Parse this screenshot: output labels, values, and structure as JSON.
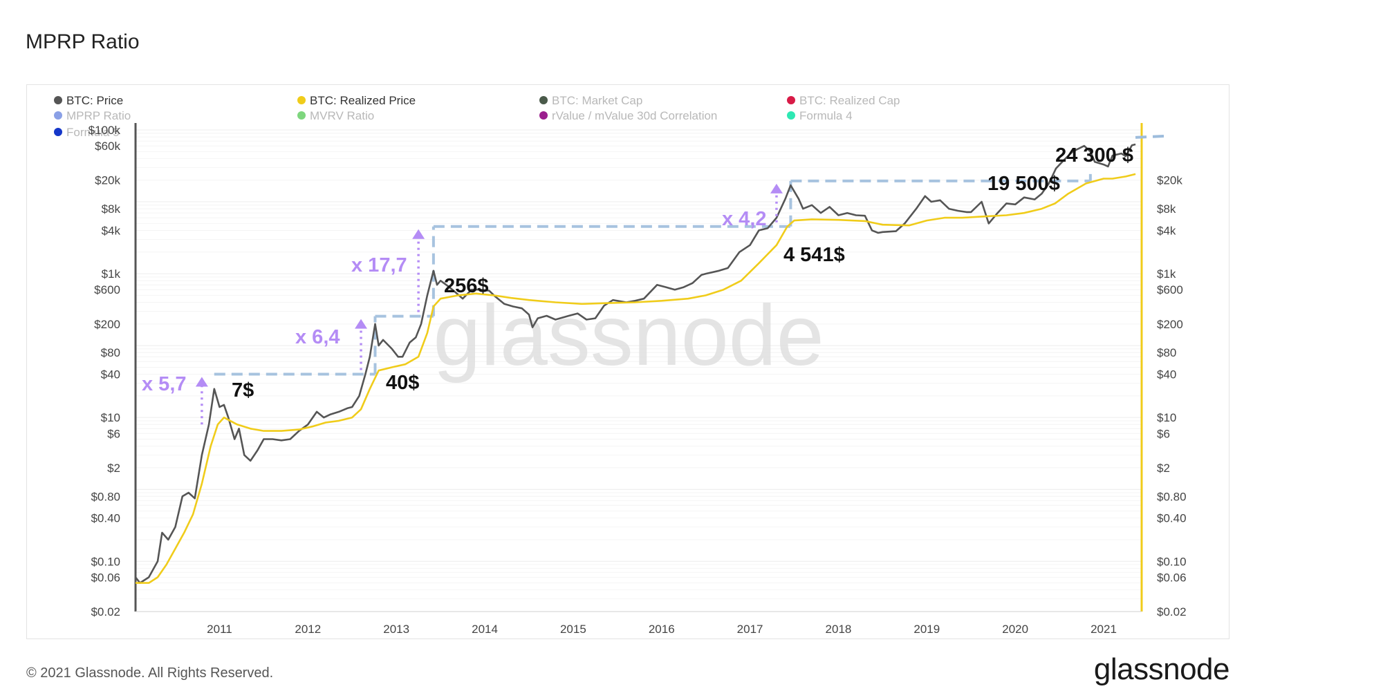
{
  "page": {
    "title": "MPRP Ratio",
    "copyright": "© 2021 Glassnode. All Rights Reserved.",
    "brand": "glassnode",
    "watermark": "glassnode"
  },
  "colors": {
    "price": "#555555",
    "realized": "#f0cc1a",
    "annotation_purple": "#b48cf5",
    "dash_blue": "#9dbcdc",
    "legend_market_cap": "#4a5a4a",
    "legend_realized_cap": "#d81b47",
    "legend_mprp": "#8aa0e6",
    "legend_mvrv": "#7ed67e",
    "legend_rvalue": "#9b1f8e",
    "legend_formula4": "#2ee8b3",
    "legend_formula5": "#1537c9"
  },
  "chart_data": {
    "type": "line",
    "y_scale": "log",
    "ylim": [
      0.02,
      100000
    ],
    "x_range": [
      "2010-07",
      "2021-11"
    ],
    "x_ticks": [
      "2011",
      "2012",
      "2013",
      "2014",
      "2015",
      "2016",
      "2017",
      "2018",
      "2019",
      "2020",
      "2021"
    ],
    "y_ticks_left": [
      "$100k",
      "$60k",
      "$20k",
      "$8k",
      "$4k",
      "$1k",
      "$600",
      "$200",
      "$80",
      "$40",
      "$10",
      "$6",
      "$2",
      "$0.80",
      "$0.40",
      "$0.10",
      "$0.06",
      "$0.02"
    ],
    "y_ticks_right": [
      "$20k",
      "$8k",
      "$4k",
      "$1k",
      "$600",
      "$200",
      "$80",
      "$40",
      "$10",
      "$6",
      "$2",
      "$0.80",
      "$0.40",
      "$0.10",
      "$0.06",
      "$0.02"
    ],
    "legend": [
      {
        "label": "BTC: Price",
        "color": "#555555",
        "active": true
      },
      {
        "label": "BTC: Realized Price",
        "color": "#f0cc1a",
        "active": true
      },
      {
        "label": "BTC: Market Cap",
        "color": "#4a5a4a",
        "active": false
      },
      {
        "label": "BTC: Realized Cap",
        "color": "#d81b47",
        "active": false
      },
      {
        "label": "MPRP Ratio",
        "color": "#8aa0e6",
        "active": false
      },
      {
        "label": "MVRV Ratio",
        "color": "#7ed67e",
        "active": false
      },
      {
        "label": "rValue / mValue 30d Correlation",
        "color": "#9b1f8e",
        "active": false
      },
      {
        "label": "Formula 4",
        "color": "#2ee8b3",
        "active": false
      },
      {
        "label": "Formula 5",
        "color": "#1537c9",
        "active": false
      }
    ],
    "series": [
      {
        "name": "BTC: Price",
        "points": [
          [
            2010.55,
            0.06
          ],
          [
            2010.6,
            0.05
          ],
          [
            2010.7,
            0.06
          ],
          [
            2010.8,
            0.1
          ],
          [
            2010.85,
            0.25
          ],
          [
            2010.92,
            0.2
          ],
          [
            2011.0,
            0.3
          ],
          [
            2011.08,
            0.8
          ],
          [
            2011.15,
            0.9
          ],
          [
            2011.22,
            0.75
          ],
          [
            2011.3,
            3
          ],
          [
            2011.38,
            8
          ],
          [
            2011.44,
            25
          ],
          [
            2011.5,
            14
          ],
          [
            2011.55,
            15
          ],
          [
            2011.6,
            10
          ],
          [
            2011.67,
            5
          ],
          [
            2011.72,
            7
          ],
          [
            2011.78,
            3
          ],
          [
            2011.85,
            2.5
          ],
          [
            2011.93,
            3.5
          ],
          [
            2012.0,
            5
          ],
          [
            2012.1,
            5
          ],
          [
            2012.2,
            4.8
          ],
          [
            2012.3,
            5
          ],
          [
            2012.4,
            6.5
          ],
          [
            2012.5,
            8
          ],
          [
            2012.6,
            12
          ],
          [
            2012.68,
            10
          ],
          [
            2012.75,
            11
          ],
          [
            2012.85,
            12
          ],
          [
            2012.95,
            13.5
          ],
          [
            2013.0,
            14
          ],
          [
            2013.08,
            20
          ],
          [
            2013.15,
            40
          ],
          [
            2013.2,
            70
          ],
          [
            2013.26,
            200
          ],
          [
            2013.3,
            100
          ],
          [
            2013.35,
            120
          ],
          [
            2013.45,
            90
          ],
          [
            2013.52,
            70
          ],
          [
            2013.57,
            70
          ],
          [
            2013.65,
            110
          ],
          [
            2013.72,
            130
          ],
          [
            2013.78,
            200
          ],
          [
            2013.85,
            500
          ],
          [
            2013.92,
            1100
          ],
          [
            2013.96,
            700
          ],
          [
            2014.0,
            800
          ],
          [
            2014.1,
            650
          ],
          [
            2014.17,
            550
          ],
          [
            2014.25,
            450
          ],
          [
            2014.35,
            600
          ],
          [
            2014.45,
            600
          ],
          [
            2014.55,
            580
          ],
          [
            2014.62,
            480
          ],
          [
            2014.72,
            380
          ],
          [
            2014.82,
            350
          ],
          [
            2014.92,
            330
          ],
          [
            2015.0,
            270
          ],
          [
            2015.04,
            180
          ],
          [
            2015.1,
            240
          ],
          [
            2015.2,
            260
          ],
          [
            2015.3,
            230
          ],
          [
            2015.45,
            260
          ],
          [
            2015.55,
            280
          ],
          [
            2015.65,
            230
          ],
          [
            2015.75,
            240
          ],
          [
            2015.85,
            360
          ],
          [
            2015.95,
            430
          ],
          [
            2016.0,
            420
          ],
          [
            2016.1,
            400
          ],
          [
            2016.2,
            420
          ],
          [
            2016.3,
            450
          ],
          [
            2016.45,
            700
          ],
          [
            2016.55,
            650
          ],
          [
            2016.65,
            600
          ],
          [
            2016.75,
            650
          ],
          [
            2016.85,
            740
          ],
          [
            2016.95,
            960
          ],
          [
            2017.0,
            1000
          ],
          [
            2017.15,
            1100
          ],
          [
            2017.25,
            1200
          ],
          [
            2017.38,
            2000
          ],
          [
            2017.5,
            2500
          ],
          [
            2017.6,
            4000
          ],
          [
            2017.7,
            4300
          ],
          [
            2017.8,
            6000
          ],
          [
            2017.9,
            11000
          ],
          [
            2017.96,
            17000
          ],
          [
            2018.0,
            14000
          ],
          [
            2018.05,
            11000
          ],
          [
            2018.1,
            8000
          ],
          [
            2018.2,
            9000
          ],
          [
            2018.3,
            7000
          ],
          [
            2018.4,
            8500
          ],
          [
            2018.5,
            6500
          ],
          [
            2018.6,
            7000
          ],
          [
            2018.7,
            6500
          ],
          [
            2018.8,
            6400
          ],
          [
            2018.88,
            4000
          ],
          [
            2018.95,
            3700
          ],
          [
            2019.0,
            3800
          ],
          [
            2019.15,
            3900
          ],
          [
            2019.25,
            5000
          ],
          [
            2019.38,
            8000
          ],
          [
            2019.48,
            12000
          ],
          [
            2019.55,
            10000
          ],
          [
            2019.65,
            10500
          ],
          [
            2019.75,
            8000
          ],
          [
            2019.85,
            7500
          ],
          [
            2019.95,
            7200
          ],
          [
            2020.0,
            7200
          ],
          [
            2020.12,
            10000
          ],
          [
            2020.2,
            5000
          ],
          [
            2020.3,
            7000
          ],
          [
            2020.4,
            9500
          ],
          [
            2020.5,
            9200
          ],
          [
            2020.6,
            11500
          ],
          [
            2020.72,
            10800
          ],
          [
            2020.8,
            13000
          ],
          [
            2020.88,
            18000
          ],
          [
            2020.96,
            29000
          ],
          [
            2021.05,
            38000
          ],
          [
            2021.15,
            50000
          ],
          [
            2021.28,
            60000
          ],
          [
            2021.35,
            50000
          ],
          [
            2021.4,
            36000
          ],
          [
            2021.5,
            33000
          ],
          [
            2021.55,
            31000
          ],
          [
            2021.6,
            44000
          ],
          [
            2021.7,
            47000
          ],
          [
            2021.75,
            43000
          ],
          [
            2021.82,
            61000
          ],
          [
            2021.86,
            63000
          ]
        ]
      },
      {
        "name": "BTC: Realized Price",
        "points": [
          [
            2010.55,
            0.05
          ],
          [
            2010.7,
            0.05
          ],
          [
            2010.8,
            0.06
          ],
          [
            2010.9,
            0.09
          ],
          [
            2011.0,
            0.15
          ],
          [
            2011.1,
            0.25
          ],
          [
            2011.2,
            0.45
          ],
          [
            2011.3,
            1.2
          ],
          [
            2011.4,
            4
          ],
          [
            2011.48,
            8
          ],
          [
            2011.55,
            10
          ],
          [
            2011.7,
            8
          ],
          [
            2011.85,
            7
          ],
          [
            2012.0,
            6.5
          ],
          [
            2012.2,
            6.5
          ],
          [
            2012.4,
            6.8
          ],
          [
            2012.55,
            7.5
          ],
          [
            2012.7,
            8.5
          ],
          [
            2012.85,
            9
          ],
          [
            2013.0,
            10
          ],
          [
            2013.1,
            13
          ],
          [
            2013.2,
            25
          ],
          [
            2013.3,
            45
          ],
          [
            2013.45,
            50
          ],
          [
            2013.6,
            55
          ],
          [
            2013.75,
            70
          ],
          [
            2013.85,
            150
          ],
          [
            2013.92,
            350
          ],
          [
            2014.0,
            450
          ],
          [
            2014.2,
            500
          ],
          [
            2014.4,
            530
          ],
          [
            2014.6,
            500
          ],
          [
            2014.8,
            460
          ],
          [
            2015.0,
            430
          ],
          [
            2015.3,
            400
          ],
          [
            2015.6,
            380
          ],
          [
            2015.9,
            390
          ],
          [
            2016.2,
            400
          ],
          [
            2016.5,
            420
          ],
          [
            2016.8,
            450
          ],
          [
            2017.0,
            500
          ],
          [
            2017.2,
            600
          ],
          [
            2017.4,
            800
          ],
          [
            2017.6,
            1400
          ],
          [
            2017.8,
            2500
          ],
          [
            2017.92,
            4500
          ],
          [
            2018.0,
            5500
          ],
          [
            2018.2,
            5700
          ],
          [
            2018.5,
            5600
          ],
          [
            2018.8,
            5400
          ],
          [
            2019.0,
            4800
          ],
          [
            2019.3,
            4700
          ],
          [
            2019.5,
            5500
          ],
          [
            2019.7,
            6000
          ],
          [
            2019.9,
            6000
          ],
          [
            2020.1,
            6200
          ],
          [
            2020.4,
            6500
          ],
          [
            2020.6,
            7000
          ],
          [
            2020.8,
            8000
          ],
          [
            2020.95,
            9500
          ],
          [
            2021.1,
            13000
          ],
          [
            2021.3,
            18000
          ],
          [
            2021.5,
            21000
          ],
          [
            2021.6,
            21000
          ],
          [
            2021.75,
            22500
          ],
          [
            2021.86,
            24300
          ]
        ]
      }
    ],
    "annotations": [
      {
        "text": "x 5,7",
        "kind": "multiplier"
      },
      {
        "text": "7$",
        "kind": "price"
      },
      {
        "text": "x 6,4",
        "kind": "multiplier"
      },
      {
        "text": "40$",
        "kind": "price"
      },
      {
        "text": "x 17,7",
        "kind": "multiplier"
      },
      {
        "text": "256$",
        "kind": "price"
      },
      {
        "text": "x 4,2",
        "kind": "multiplier"
      },
      {
        "text": "4 541$",
        "kind": "price"
      },
      {
        "text": "19 500$",
        "kind": "price"
      },
      {
        "text": "24 300 $",
        "kind": "price"
      }
    ],
    "steps": [
      {
        "from": 2011.44,
        "to": 2013.26,
        "level": 40
      },
      {
        "from": 2013.26,
        "to": 2013.92,
        "level": 256
      },
      {
        "from": 2013.92,
        "to": 2017.96,
        "level": 4541
      },
      {
        "from": 2017.96,
        "to": 2021.35,
        "level": 19500
      },
      {
        "from": 2021.86,
        "to": 2021.99,
        "level": 24300
      }
    ],
    "arrows": [
      {
        "x": 2011.3,
        "from": 7,
        "to": 40
      },
      {
        "x": 2013.1,
        "from": 40,
        "to": 256
      },
      {
        "x": 2013.75,
        "from": 256,
        "to": 4541
      },
      {
        "x": 2017.8,
        "from": 4541,
        "to": 19500
      }
    ]
  }
}
